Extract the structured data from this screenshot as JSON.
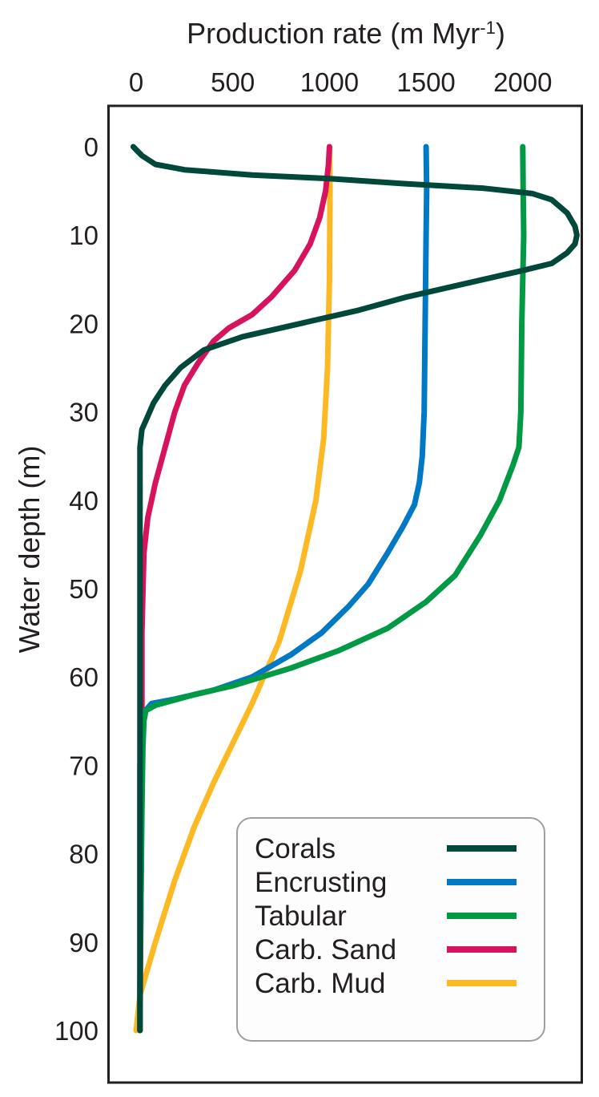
{
  "chart_data": {
    "type": "line",
    "xlabel": "Production rate (m Myr",
    "xlabel_sup": "-1",
    "xlabel_close": ")",
    "ylabel": "Water depth (m)",
    "x_axis_position": "top",
    "y_inverted": true,
    "xlim": [
      -150,
      2330
    ],
    "ylim": [
      -5,
      105
    ],
    "xticks": [
      0,
      500,
      1000,
      1500,
      2000
    ],
    "yticks": [
      0,
      10,
      20,
      30,
      40,
      50,
      60,
      70,
      80,
      90,
      100
    ],
    "grid": false,
    "legend_position": "bottom-right",
    "series": [
      {
        "name": "Corals",
        "color": "#00483a",
        "points": [
          [
            -15,
            0
          ],
          [
            30,
            1
          ],
          [
            100,
            2
          ],
          [
            200,
            2.4
          ],
          [
            250,
            2.6
          ],
          [
            600,
            3.2
          ],
          [
            1000,
            3.6
          ],
          [
            1400,
            4.2
          ],
          [
            1800,
            4.7
          ],
          [
            2050,
            5.3
          ],
          [
            2150,
            6
          ],
          [
            2230,
            7.5
          ],
          [
            2270,
            9
          ],
          [
            2280,
            10
          ],
          [
            2270,
            11
          ],
          [
            2230,
            12
          ],
          [
            2150,
            13.2
          ],
          [
            2000,
            14
          ],
          [
            1700,
            15.5
          ],
          [
            1400,
            17
          ],
          [
            1150,
            18.5
          ],
          [
            850,
            20
          ],
          [
            550,
            21.5
          ],
          [
            350,
            23
          ],
          [
            230,
            25
          ],
          [
            150,
            27
          ],
          [
            90,
            29
          ],
          [
            50,
            31
          ],
          [
            30,
            32
          ],
          [
            20,
            34
          ],
          [
            20,
            40
          ],
          [
            20,
            50
          ],
          [
            20,
            60
          ],
          [
            20,
            70
          ],
          [
            20,
            80
          ],
          [
            20,
            90
          ],
          [
            20,
            100
          ]
        ]
      },
      {
        "name": "Encrusting",
        "color": "#0079c4",
        "points": [
          [
            1500,
            0
          ],
          [
            1503,
            5
          ],
          [
            1500,
            10
          ],
          [
            1495,
            20
          ],
          [
            1490,
            30
          ],
          [
            1480,
            35
          ],
          [
            1465,
            38
          ],
          [
            1440,
            40.5
          ],
          [
            1380,
            43
          ],
          [
            1300,
            46
          ],
          [
            1200,
            49.5
          ],
          [
            1100,
            52
          ],
          [
            960,
            55
          ],
          [
            800,
            57.5
          ],
          [
            600,
            60
          ],
          [
            400,
            61.5
          ],
          [
            200,
            62.5
          ],
          [
            80,
            63
          ],
          [
            40,
            64
          ],
          [
            30,
            66
          ],
          [
            20,
            70
          ],
          [
            20,
            80
          ],
          [
            20,
            90
          ],
          [
            20,
            100
          ]
        ]
      },
      {
        "name": "Tabular",
        "color": "#009a44",
        "points": [
          [
            2000,
            0
          ],
          [
            2002,
            5
          ],
          [
            2005,
            10
          ],
          [
            2000,
            15
          ],
          [
            1995,
            20
          ],
          [
            1990,
            30
          ],
          [
            1980,
            34
          ],
          [
            1950,
            36
          ],
          [
            1880,
            40
          ],
          [
            1780,
            44
          ],
          [
            1650,
            48.5
          ],
          [
            1500,
            51.5
          ],
          [
            1300,
            54.5
          ],
          [
            1050,
            57
          ],
          [
            800,
            59
          ],
          [
            500,
            61
          ],
          [
            300,
            62
          ],
          [
            100,
            63.2
          ],
          [
            50,
            63.8
          ],
          [
            40,
            65
          ],
          [
            35,
            68
          ],
          [
            30,
            75
          ],
          [
            25,
            85
          ],
          [
            20,
            95
          ],
          [
            20,
            100
          ]
        ]
      },
      {
        "name": "Carb. Sand",
        "color": "#d8135d",
        "points": [
          [
            1000,
            0
          ],
          [
            995,
            2
          ],
          [
            980,
            5
          ],
          [
            950,
            8
          ],
          [
            900,
            11
          ],
          [
            820,
            14
          ],
          [
            700,
            17
          ],
          [
            600,
            19
          ],
          [
            480,
            20.5
          ],
          [
            400,
            22
          ],
          [
            320,
            24.5
          ],
          [
            250,
            27
          ],
          [
            200,
            30
          ],
          [
            150,
            34
          ],
          [
            100,
            38
          ],
          [
            60,
            42
          ],
          [
            40,
            46
          ],
          [
            30,
            55
          ],
          [
            30,
            70
          ],
          [
            25,
            85
          ],
          [
            20,
            100
          ]
        ]
      },
      {
        "name": "Carb. Mud",
        "color": "#fdb924",
        "points": [
          [
            1000,
            0
          ],
          [
            1003,
            5
          ],
          [
            1000,
            15
          ],
          [
            990,
            25
          ],
          [
            970,
            33
          ],
          [
            930,
            40
          ],
          [
            850,
            48
          ],
          [
            740,
            56
          ],
          [
            600,
            63
          ],
          [
            400,
            72
          ],
          [
            300,
            77
          ],
          [
            200,
            83
          ],
          [
            100,
            90
          ],
          [
            20,
            96
          ],
          [
            0,
            100
          ]
        ]
      }
    ]
  }
}
